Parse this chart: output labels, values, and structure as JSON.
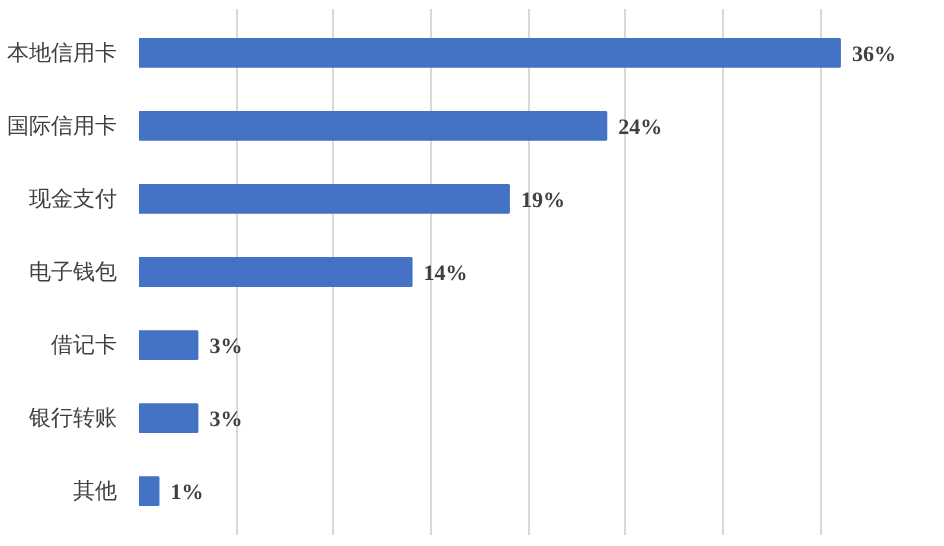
{
  "chart_data": {
    "type": "bar",
    "orientation": "horizontal",
    "categories": [
      "本地信用卡",
      "国际信用卡",
      "现金支付",
      "电子钱包",
      "借记卡",
      "银行转账",
      "其他"
    ],
    "values": [
      36,
      24,
      19,
      14,
      3,
      3,
      1
    ],
    "value_labels": [
      "36%",
      "24%",
      "19%",
      "14%",
      "3%",
      "3%",
      "1%"
    ],
    "color": "#4472c4",
    "tick_labels": "y",
    "grid": "x"
  }
}
